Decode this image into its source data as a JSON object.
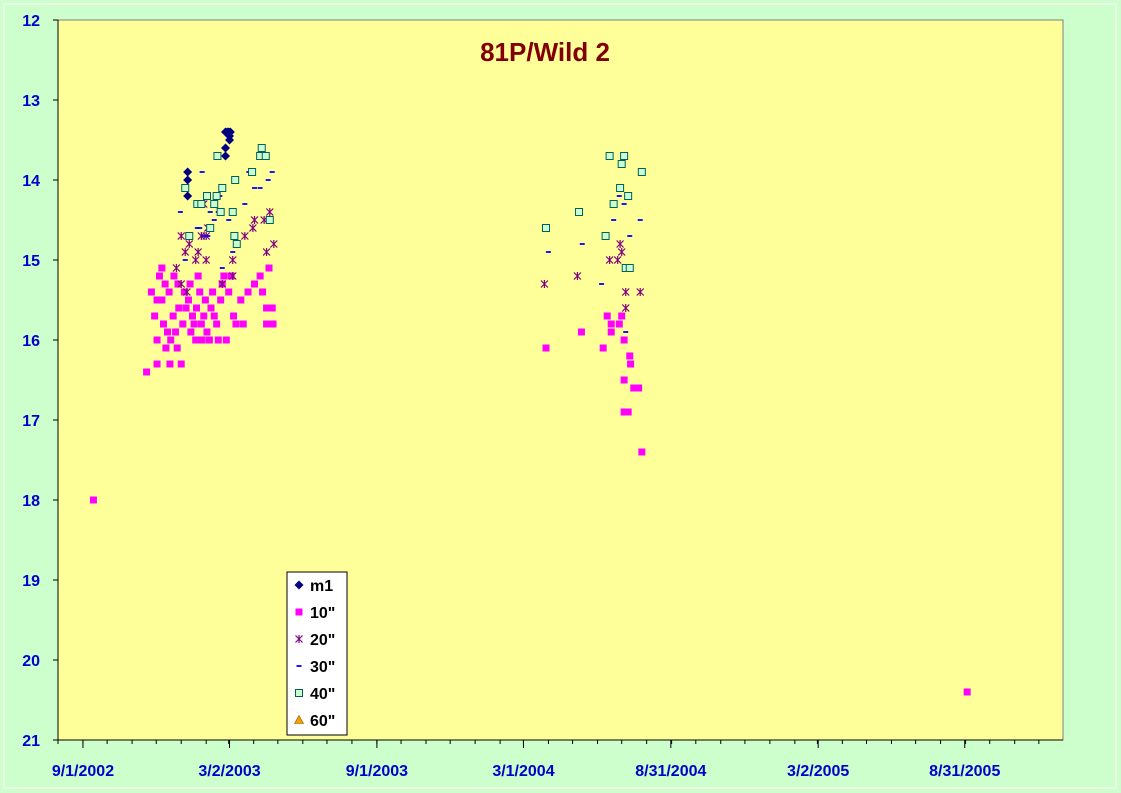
{
  "chart_data": {
    "type": "scatter",
    "title": "81P/Wild 2",
    "xlabel": "",
    "ylabel": "",
    "x_axis": {
      "type": "date",
      "min": "2002-08-01",
      "max": "2005-12-31",
      "tick_labels": [
        {
          "date": "2002-09-01",
          "label": "9/1/2002"
        },
        {
          "date": "2003-03-02",
          "label": "3/2/2003"
        },
        {
          "date": "2003-09-01",
          "label": "9/1/2003"
        },
        {
          "date": "2004-03-01",
          "label": "3/1/2004"
        },
        {
          "date": "2004-08-31",
          "label": "8/31/2004"
        },
        {
          "date": "2005-03-02",
          "label": "3/2/2005"
        },
        {
          "date": "2005-08-31",
          "label": "8/31/2005"
        }
      ]
    },
    "y_axis": {
      "reversed": true,
      "ylim": [
        12,
        21
      ],
      "ticks": [
        "12",
        "13",
        "14",
        "15",
        "16",
        "17",
        "18",
        "19",
        "20",
        "21"
      ]
    },
    "grid": false,
    "legend_position": "bottom-left",
    "colors": {
      "page_background": "#ccffcc",
      "plot_background": "#ffff99",
      "axis_label": "#0000cc",
      "title": "#800000"
    },
    "series": [
      {
        "name": "m1",
        "marker": "diamond",
        "color": "#000080",
        "points": [
          [
            "2003-01-09",
            13.9
          ],
          [
            "2003-01-09",
            14.0
          ],
          [
            "2003-01-09",
            14.2
          ],
          [
            "2003-02-25",
            13.4
          ],
          [
            "2003-02-27",
            13.4
          ],
          [
            "2003-03-01",
            13.4
          ],
          [
            "2003-03-02",
            13.5
          ],
          [
            "2003-03-03",
            13.4
          ],
          [
            "2003-02-25",
            13.6
          ],
          [
            "2003-02-25",
            13.7
          ],
          [
            "2003-03-02",
            13.45
          ]
        ]
      },
      {
        "name": "10\"",
        "marker": "square",
        "color": "#ff00ff",
        "points": [
          [
            "2002-09-14",
            18.0
          ],
          [
            "2002-11-19",
            16.4
          ],
          [
            "2002-12-02",
            16.3
          ],
          [
            "2002-11-25",
            15.4
          ],
          [
            "2002-11-29",
            15.7
          ],
          [
            "2002-12-02",
            15.5
          ],
          [
            "2002-12-02",
            16.0
          ],
          [
            "2002-12-05",
            15.2
          ],
          [
            "2002-12-08",
            15.1
          ],
          [
            "2002-12-08",
            15.5
          ],
          [
            "2002-12-10",
            15.8
          ],
          [
            "2002-12-12",
            15.3
          ],
          [
            "2002-12-13",
            16.1
          ],
          [
            "2002-12-15",
            15.9
          ],
          [
            "2002-12-17",
            15.4
          ],
          [
            "2002-12-18",
            16.3
          ],
          [
            "2002-12-19",
            16.0
          ],
          [
            "2002-12-22",
            15.7
          ],
          [
            "2002-12-23",
            15.2
          ],
          [
            "2002-12-25",
            15.9
          ],
          [
            "2002-12-27",
            16.1
          ],
          [
            "2002-12-28",
            15.3
          ],
          [
            "2002-12-29",
            15.6
          ],
          [
            "2003-01-01",
            16.3
          ],
          [
            "2003-01-03",
            15.8
          ],
          [
            "2003-01-05",
            15.4
          ],
          [
            "2003-01-07",
            15.6
          ],
          [
            "2003-01-10",
            15.5
          ],
          [
            "2003-01-12",
            15.3
          ],
          [
            "2003-01-13",
            15.9
          ],
          [
            "2003-01-15",
            15.7
          ],
          [
            "2003-01-17",
            15.8
          ],
          [
            "2003-01-19",
            16.0
          ],
          [
            "2003-01-20",
            15.6
          ],
          [
            "2003-01-22",
            15.2
          ],
          [
            "2003-01-24",
            15.4
          ],
          [
            "2003-01-26",
            15.8
          ],
          [
            "2003-01-27",
            16.0
          ],
          [
            "2003-01-29",
            15.7
          ],
          [
            "2003-01-31",
            15.5
          ],
          [
            "2003-02-02",
            15.9
          ],
          [
            "2003-02-05",
            16.0
          ],
          [
            "2003-02-07",
            15.6
          ],
          [
            "2003-02-09",
            15.4
          ],
          [
            "2003-02-11",
            15.7
          ],
          [
            "2003-02-14",
            15.8
          ],
          [
            "2003-02-16",
            16.0
          ],
          [
            "2003-02-19",
            15.5
          ],
          [
            "2003-02-21",
            15.3
          ],
          [
            "2003-02-23",
            15.2
          ],
          [
            "2003-02-26",
            16.0
          ],
          [
            "2003-03-01",
            15.4
          ],
          [
            "2003-03-04",
            15.2
          ],
          [
            "2003-03-07",
            15.7
          ],
          [
            "2003-03-10",
            15.8
          ],
          [
            "2003-03-16",
            15.5
          ],
          [
            "2003-03-19",
            15.8
          ],
          [
            "2003-03-25",
            15.4
          ],
          [
            "2003-04-02",
            15.3
          ],
          [
            "2003-04-09",
            15.2
          ],
          [
            "2003-04-12",
            15.4
          ],
          [
            "2003-04-17",
            15.6
          ],
          [
            "2003-04-17",
            15.8
          ],
          [
            "2003-04-20",
            15.1
          ],
          [
            "2003-04-24",
            15.6
          ],
          [
            "2003-04-25",
            15.8
          ],
          [
            "2004-03-29",
            16.1
          ],
          [
            "2004-05-12",
            15.9
          ],
          [
            "2004-06-08",
            16.1
          ],
          [
            "2004-06-13",
            15.7
          ],
          [
            "2004-06-18",
            15.8
          ],
          [
            "2004-06-18",
            15.9
          ],
          [
            "2004-06-28",
            15.8
          ],
          [
            "2004-07-01",
            15.7
          ],
          [
            "2004-07-04",
            16.0
          ],
          [
            "2004-07-04",
            16.5
          ],
          [
            "2004-07-04",
            16.9
          ],
          [
            "2004-07-09",
            16.9
          ],
          [
            "2004-07-11",
            16.2
          ],
          [
            "2004-07-12",
            16.3
          ],
          [
            "2004-07-16",
            16.6
          ],
          [
            "2004-07-22",
            16.6
          ],
          [
            "2004-07-26",
            17.4
          ],
          [
            "2005-09-03",
            20.4
          ]
        ]
      },
      {
        "name": "20\"",
        "marker": "asterisk",
        "color": "#800080",
        "points": [
          [
            "2003-01-01",
            14.7
          ],
          [
            "2003-01-08",
            15.4
          ],
          [
            "2002-12-26",
            15.1
          ],
          [
            "2003-01-01",
            15.3
          ],
          [
            "2003-01-06",
            14.9
          ],
          [
            "2003-01-11",
            14.8
          ],
          [
            "2003-01-19",
            15.0
          ],
          [
            "2003-01-22",
            14.9
          ],
          [
            "2003-01-26",
            14.7
          ],
          [
            "2003-01-29",
            14.3
          ],
          [
            "2003-02-01",
            14.7
          ],
          [
            "2003-02-01",
            15.0
          ],
          [
            "2003-02-03",
            14.6
          ],
          [
            "2003-02-21",
            15.3
          ],
          [
            "2003-03-06",
            15.2
          ],
          [
            "2003-03-06",
            15.0
          ],
          [
            "2003-03-21",
            14.7
          ],
          [
            "2003-03-31",
            14.6
          ],
          [
            "2003-04-02",
            14.5
          ],
          [
            "2003-04-14",
            14.5
          ],
          [
            "2003-04-17",
            14.9
          ],
          [
            "2003-04-21",
            14.4
          ],
          [
            "2003-04-26",
            14.8
          ],
          [
            "2004-03-27",
            15.3
          ],
          [
            "2004-05-07",
            15.2
          ],
          [
            "2004-06-11",
            14.7
          ],
          [
            "2004-06-16",
            15.0
          ],
          [
            "2004-06-26",
            15.0
          ],
          [
            "2004-06-29",
            14.8
          ],
          [
            "2004-07-01",
            14.9
          ],
          [
            "2004-07-06",
            15.4
          ],
          [
            "2004-07-06",
            15.6
          ],
          [
            "2004-07-24",
            15.4
          ]
        ]
      },
      {
        "name": "30\"",
        "marker": "dash",
        "color": "#0000ff",
        "points": [
          [
            "2002-12-31",
            14.4
          ],
          [
            "2003-01-06",
            15.0
          ],
          [
            "2003-01-21",
            14.6
          ],
          [
            "2003-01-24",
            14.6
          ],
          [
            "2003-02-03",
            14.7
          ],
          [
            "2003-02-11",
            14.5
          ],
          [
            "2003-02-21",
            15.1
          ],
          [
            "2003-03-01",
            14.5
          ],
          [
            "2003-03-21",
            14.3
          ],
          [
            "2003-03-26",
            13.9
          ],
          [
            "2003-04-02",
            14.1
          ],
          [
            "2003-04-09",
            14.1
          ],
          [
            "2003-04-19",
            14.0
          ],
          [
            "2003-04-24",
            13.9
          ],
          [
            "2003-02-16",
            14.4
          ],
          [
            "2003-01-29",
            14.7
          ],
          [
            "2003-03-06",
            14.9
          ],
          [
            "2003-02-06",
            14.4
          ],
          [
            "2003-01-27",
            13.9
          ],
          [
            "2003-02-18",
            14.2
          ],
          [
            "2004-04-01",
            14.9
          ],
          [
            "2004-05-13",
            14.8
          ],
          [
            "2004-06-06",
            15.3
          ],
          [
            "2004-06-21",
            14.5
          ],
          [
            "2004-06-28",
            14.2
          ],
          [
            "2004-07-04",
            14.3
          ],
          [
            "2004-07-06",
            15.9
          ],
          [
            "2004-07-11",
            14.7
          ],
          [
            "2004-07-24",
            14.5
          ]
        ]
      },
      {
        "name": "40\"",
        "marker": "square-open",
        "color": "#006060",
        "points": [
          [
            "2003-01-06",
            14.1
          ],
          [
            "2003-01-11",
            14.7
          ],
          [
            "2003-01-21",
            14.3
          ],
          [
            "2003-01-26",
            14.3
          ],
          [
            "2003-02-02",
            14.2
          ],
          [
            "2003-02-06",
            14.6
          ],
          [
            "2003-02-11",
            14.3
          ],
          [
            "2003-02-14",
            14.2
          ],
          [
            "2003-02-15",
            13.7
          ],
          [
            "2003-02-19",
            14.4
          ],
          [
            "2003-02-21",
            14.1
          ],
          [
            "2003-03-06",
            14.4
          ],
          [
            "2003-03-08",
            14.7
          ],
          [
            "2003-03-09",
            14.0
          ],
          [
            "2003-03-11",
            14.8
          ],
          [
            "2003-03-30",
            13.9
          ],
          [
            "2003-04-09",
            13.7
          ],
          [
            "2003-04-11",
            13.6
          ],
          [
            "2003-04-16",
            13.7
          ],
          [
            "2003-04-21",
            14.5
          ],
          [
            "2004-03-29",
            14.6
          ],
          [
            "2004-05-09",
            14.4
          ],
          [
            "2004-06-11",
            14.7
          ],
          [
            "2004-06-16",
            13.7
          ],
          [
            "2004-06-21",
            14.3
          ],
          [
            "2004-06-29",
            14.1
          ],
          [
            "2004-07-01",
            13.8
          ],
          [
            "2004-07-04",
            13.7
          ],
          [
            "2004-07-06",
            15.1
          ],
          [
            "2004-07-11",
            15.1
          ],
          [
            "2004-07-09",
            14.2
          ],
          [
            "2004-07-26",
            13.9
          ]
        ]
      },
      {
        "name": "60\"",
        "marker": "triangle",
        "color": "#ff9900",
        "points": []
      }
    ]
  }
}
